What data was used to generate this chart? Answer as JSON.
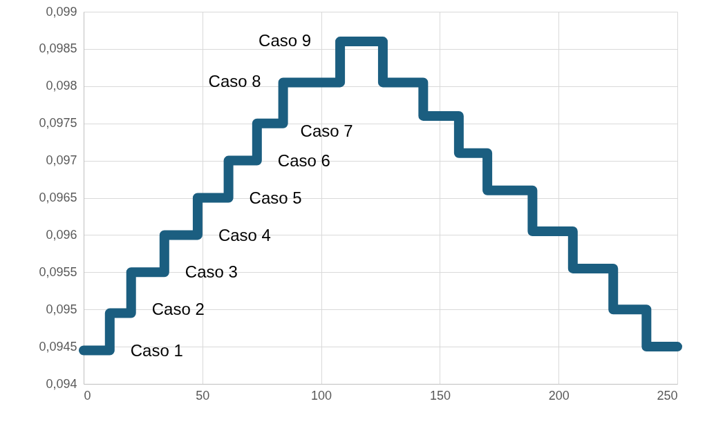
{
  "chart_data": {
    "type": "step",
    "x": [
      0,
      11,
      20,
      34,
      48,
      61,
      73,
      84,
      108,
      126,
      143,
      158,
      170,
      189,
      206,
      223,
      237,
      250
    ],
    "series": [
      {
        "color": "#1b5e80",
        "values": [
          0.09445,
          0.09495,
          0.0955,
          0.096,
          0.0965,
          0.097,
          0.0975,
          0.09805,
          0.0986,
          0.09805,
          0.0976,
          0.0971,
          0.0966,
          0.09605,
          0.09555,
          0.095,
          0.0945,
          0.0945
        ]
      }
    ],
    "xlim": [
      0,
      250
    ],
    "xticks": [
      0,
      50,
      100,
      150,
      200,
      250
    ],
    "ylim": [
      0.094,
      0.099
    ],
    "yticks": [
      {
        "value": 0.094,
        "label": "0,094"
      },
      {
        "value": 0.0945,
        "label": "0,0945"
      },
      {
        "value": 0.095,
        "label": "0,095"
      },
      {
        "value": 0.0955,
        "label": "0,0955"
      },
      {
        "value": 0.096,
        "label": "0,096"
      },
      {
        "value": 0.0965,
        "label": "0,0965"
      },
      {
        "value": 0.097,
        "label": "0,097"
      },
      {
        "value": 0.0975,
        "label": "0,0975"
      },
      {
        "value": 0.098,
        "label": "0,098"
      },
      {
        "value": 0.0985,
        "label": "0,0985"
      },
      {
        "value": 0.099,
        "label": "0,099"
      }
    ],
    "grid": true,
    "annotations": [
      "Caso 1",
      "Caso 2",
      "Caso 3",
      "Caso 4",
      "Caso 5",
      "Caso 6",
      "Caso 7",
      "Caso 8",
      "Caso 9"
    ]
  }
}
